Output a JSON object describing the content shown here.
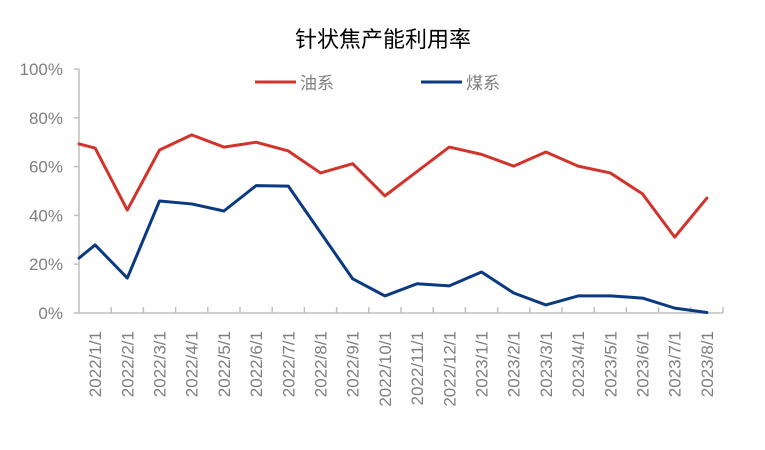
{
  "chart_data": {
    "type": "line",
    "title": "针状焦产能利用率",
    "xlabel": "",
    "ylabel": "",
    "ylim": [
      0,
      100
    ],
    "yticks": [
      "0%",
      "20%",
      "40%",
      "60%",
      "80%",
      "100%"
    ],
    "grid": false,
    "legend_position": "top",
    "categories": [
      "2022/1/1",
      "2022/2/1",
      "2022/3/1",
      "2022/4/1",
      "2022/5/1",
      "2022/6/1",
      "2022/7/1",
      "2022/8/1",
      "2022/9/1",
      "2022/10/1",
      "2022/11/1",
      "2022/12/1",
      "2023/1/1",
      "2023/2/1",
      "2023/3/1",
      "2023/4/1",
      "2023/5/1",
      "2023/6/1",
      "2023/7/1",
      "2023/8/1"
    ],
    "leading_values": {
      "油系": 69.3,
      "煤系": 22.5
    },
    "series": [
      {
        "name": "油系",
        "color": "#d0342c",
        "values": [
          67.6,
          42.2,
          66.8,
          73.0,
          68.0,
          70.0,
          66.4,
          57.4,
          61.2,
          48.0,
          58.0,
          68.0,
          65.0,
          60.2,
          66.0,
          60.2,
          57.4,
          48.8,
          31.1,
          47.1
        ]
      },
      {
        "name": "煤系",
        "color": "#0b3a80",
        "values": [
          27.9,
          14.3,
          45.9,
          44.7,
          41.8,
          52.2,
          52.0,
          33.0,
          14.0,
          7.0,
          12.0,
          11.1,
          16.8,
          8.2,
          3.3,
          7.0,
          7.0,
          6.1,
          2.0,
          0.2
        ]
      }
    ]
  },
  "legend": {
    "oil_label": "油系",
    "coal_label": "煤系"
  }
}
